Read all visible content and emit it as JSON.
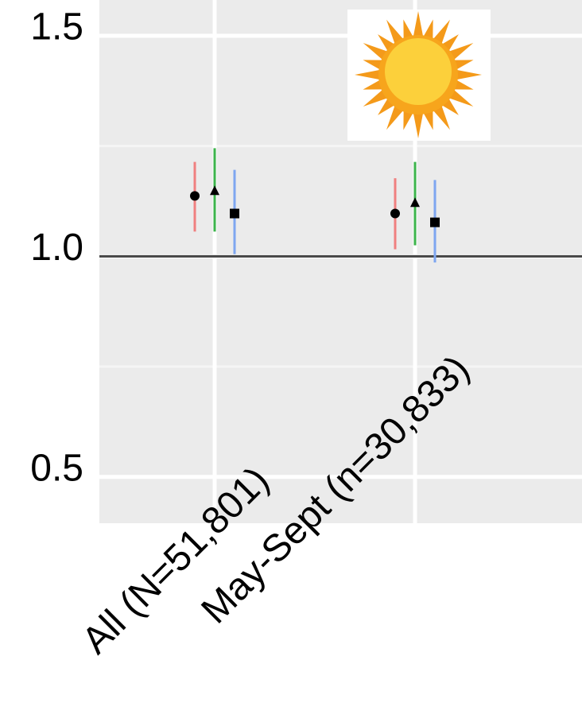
{
  "chart_data": {
    "type": "pointrange",
    "categories": [
      "All (N=51,801)",
      "May-Sept (n=30,833)"
    ],
    "series": [
      {
        "color": "#f08080",
        "marker": "circle",
        "values": [
          1.137,
          1.097
        ],
        "lower": [
          1.056,
          1.016
        ],
        "upper": [
          1.214,
          1.177
        ]
      },
      {
        "color": "#3cb44b",
        "marker": "triangle",
        "values": [
          1.148,
          1.121
        ],
        "lower": [
          1.056,
          1.025
        ],
        "upper": [
          1.245,
          1.214
        ]
      },
      {
        "color": "#7ea6f0",
        "marker": "square",
        "values": [
          1.097,
          1.077
        ],
        "lower": [
          1.005,
          0.986
        ],
        "upper": [
          1.196,
          1.173
        ]
      }
    ],
    "ylim": [
      0.395,
      1.581
    ],
    "yticks": [
      0.5,
      {
        "value": 1,
        "label": "1.0"
      },
      1.5
    ],
    "minor_yticks": [
      0.75,
      1.25
    ],
    "hline": 1,
    "grid": true
  }
}
